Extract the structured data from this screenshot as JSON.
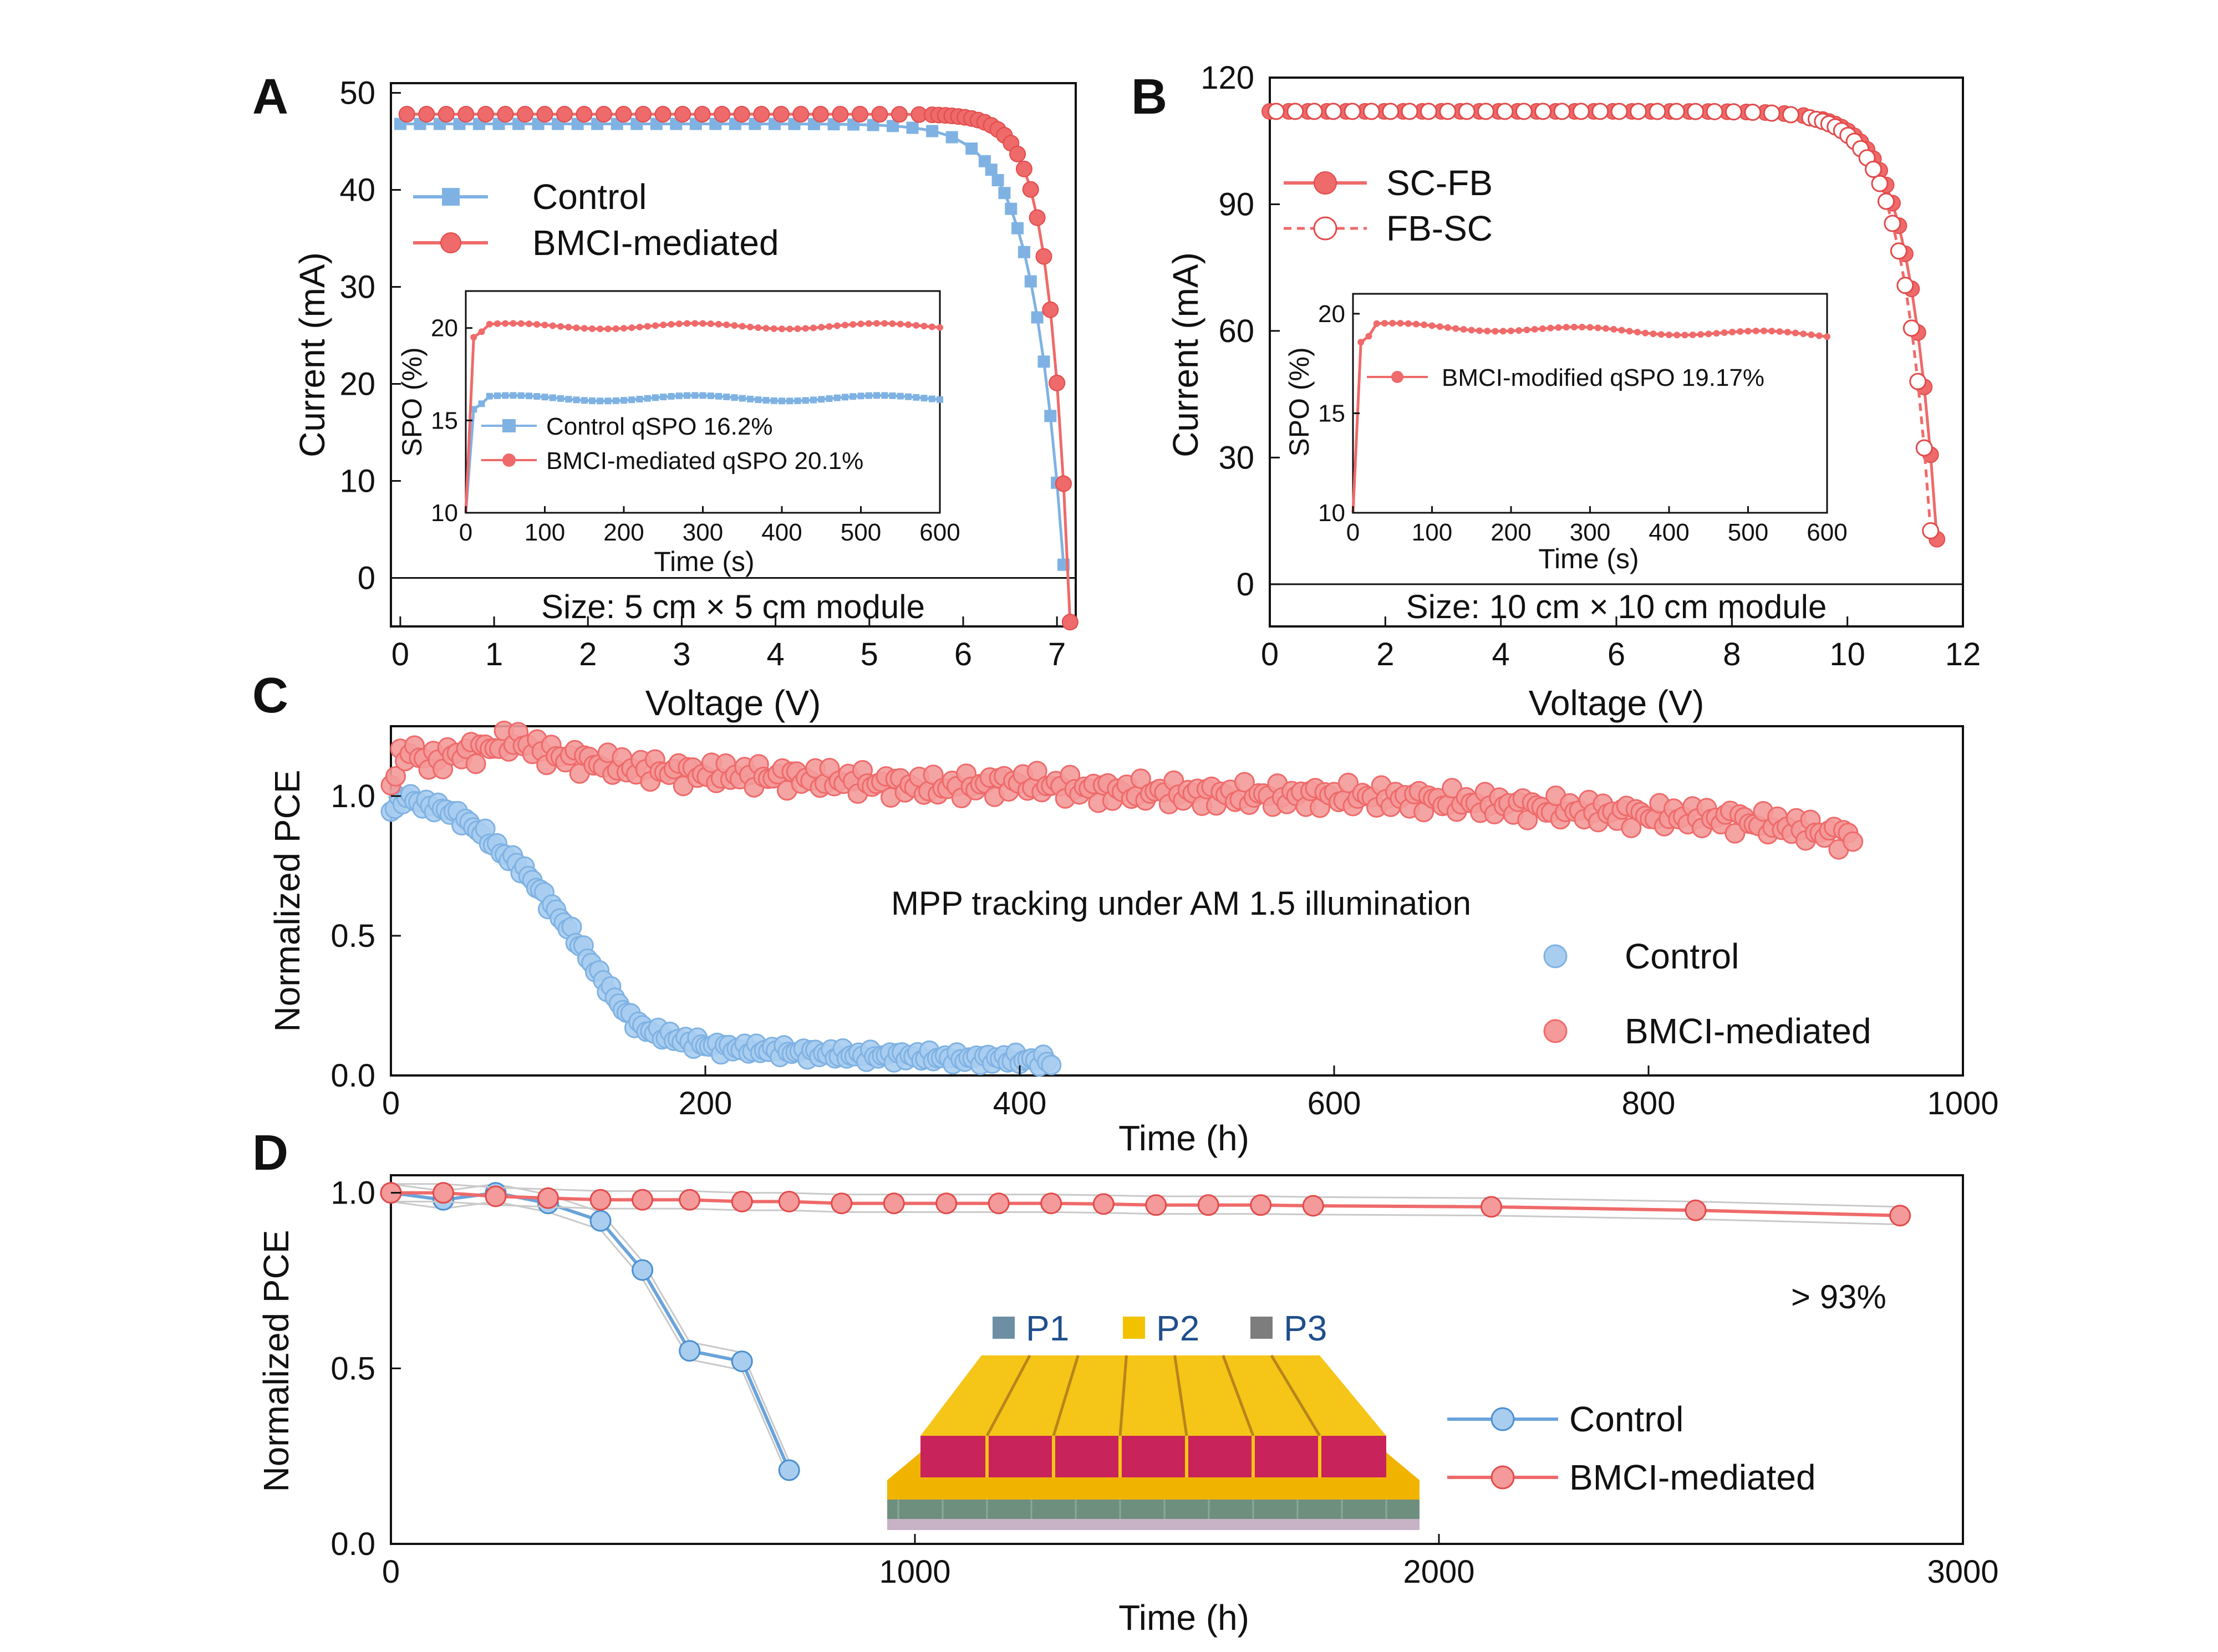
{
  "figure": {
    "colors": {
      "control": "#7fb2e3",
      "control_dark": "#4a90d0",
      "bmci": "#ef6a6a",
      "bmci_dark": "#e24a4a",
      "axis": "#111111"
    },
    "panels": {
      "A": {
        "letter": "A",
        "size_label": "Size: 5 cm × 5 cm module"
      },
      "B": {
        "letter": "B",
        "size_label": "Size: 10 cm × 10 cm module"
      },
      "C": {
        "letter": "C",
        "annotation": "MPP tracking under AM 1.5 illumination"
      },
      "D": {
        "letter": "D",
        "annotation": "> 93%"
      }
    },
    "schematic": {
      "labels": [
        "P1",
        "P2",
        "P3"
      ],
      "colors": [
        "#6e8fa3",
        "#f2c200",
        "#7d7d7d"
      ]
    }
  },
  "chart_data": [
    {
      "id": "A",
      "type": "line",
      "xlabel": "Voltage (V)",
      "ylabel": "Current  (mA)",
      "xlim": [
        -0.1,
        7.2
      ],
      "ylim": [
        -5,
        51
      ],
      "xticks": [
        0,
        1,
        2,
        3,
        4,
        5,
        6,
        7
      ],
      "yticks": [
        0,
        10,
        20,
        30,
        40,
        50
      ],
      "zero_line": true,
      "series": [
        {
          "name": "Control",
          "marker": "square",
          "color_key": "control",
          "model": "jv",
          "params": {
            "jsc": 46.8,
            "voc": 7.08,
            "knee": 6.6,
            "slope": 0.34
          }
        },
        {
          "name": "BMCI-mediated",
          "marker": "circle",
          "color_key": "bmci",
          "model": "jv",
          "params": {
            "jsc": 47.8,
            "voc": 7.12,
            "knee": 6.05,
            "slope": 0.22
          }
        }
      ],
      "legend": [
        "Control",
        "BMCI-mediated"
      ],
      "note": "Size: 5 cm × 5 cm module",
      "inset": {
        "xlabel": "Time (s)",
        "ylabel": "SPO (%)",
        "xlim": [
          0,
          600
        ],
        "ylim": [
          10,
          22
        ],
        "xticks": [
          0,
          100,
          200,
          300,
          400,
          500,
          600
        ],
        "yticks": [
          10,
          15,
          20
        ],
        "series": [
          {
            "name": "Control",
            "label": "Control qSPO 16.2%",
            "value": 16.2,
            "color_key": "control",
            "marker": "square"
          },
          {
            "name": "BMCI-mediated",
            "label": "BMCI-mediated qSPO 20.1%",
            "value": 20.1,
            "color_key": "bmci",
            "marker": "circle"
          }
        ]
      }
    },
    {
      "id": "B",
      "type": "line",
      "xlabel": "Voltage (V)",
      "ylabel": "Current  (mA)",
      "xlim": [
        0,
        12
      ],
      "ylim": [
        -10,
        120
      ],
      "xticks": [
        0,
        2,
        4,
        6,
        8,
        10,
        12
      ],
      "yticks": [
        0,
        30,
        60,
        90,
        120
      ],
      "zero_line": true,
      "series": [
        {
          "name": "SC-FB",
          "marker": "circle",
          "color_key": "bmci",
          "model": "jv",
          "params": {
            "jsc": 112,
            "voc": 11.6,
            "knee": 9.9,
            "slope": 0.5
          }
        },
        {
          "name": "FB-SC",
          "marker": "open-circle",
          "color_key": "bmci",
          "model": "jv",
          "params": {
            "jsc": 112,
            "voc": 11.5,
            "knee": 9.8,
            "slope": 0.5
          }
        }
      ],
      "legend": [
        "SC-FB",
        "FB-SC"
      ],
      "note": "Size: 10 cm × 10 cm module",
      "inset": {
        "xlabel": "Time (s)",
        "ylabel": "SPO (%)",
        "xlim": [
          0,
          600
        ],
        "ylim": [
          10,
          21
        ],
        "xticks": [
          0,
          100,
          200,
          300,
          400,
          500,
          600
        ],
        "yticks": [
          10,
          15,
          20
        ],
        "series": [
          {
            "name": "BMCI-modified",
            "label": "BMCI-modified qSPO 19.17%",
            "value": 19.17,
            "color_key": "bmci",
            "marker": "circle"
          }
        ]
      }
    },
    {
      "id": "C",
      "type": "scatter",
      "xlabel": "Time (h)",
      "ylabel": "Normalized PCE",
      "xlim": [
        0,
        1000
      ],
      "ylim": [
        0,
        1.25
      ],
      "xticks": [
        0,
        200,
        400,
        600,
        800,
        1000
      ],
      "yticks": [
        0.0,
        0.5,
        1.0
      ],
      "annotation": "MPP tracking under AM 1.5 illumination",
      "series": [
        {
          "name": "Control",
          "color_key": "control",
          "points": [
            [
              0,
              0.95
            ],
            [
              10,
              1.0
            ],
            [
              20,
              0.97
            ],
            [
              30,
              0.96
            ],
            [
              40,
              0.94
            ],
            [
              50,
              0.9
            ],
            [
              60,
              0.86
            ],
            [
              70,
              0.8
            ],
            [
              80,
              0.76
            ],
            [
              90,
              0.7
            ],
            [
              100,
              0.62
            ],
            [
              110,
              0.55
            ],
            [
              120,
              0.47
            ],
            [
              130,
              0.38
            ],
            [
              140,
              0.3
            ],
            [
              150,
              0.22
            ],
            [
              160,
              0.17
            ],
            [
              175,
              0.14
            ],
            [
              190,
              0.12
            ],
            [
              210,
              0.1
            ],
            [
              240,
              0.09
            ],
            [
              270,
              0.08
            ],
            [
              300,
              0.07
            ],
            [
              330,
              0.07
            ],
            [
              360,
              0.06
            ],
            [
              390,
              0.06
            ],
            [
              420,
              0.05
            ]
          ]
        },
        {
          "name": "BMCI-mediated",
          "color_key": "bmci",
          "points": [
            [
              0,
              1.05
            ],
            [
              10,
              1.17
            ],
            [
              25,
              1.12
            ],
            [
              40,
              1.15
            ],
            [
              60,
              1.17
            ],
            [
              80,
              1.2
            ],
            [
              100,
              1.15
            ],
            [
              150,
              1.1
            ],
            [
              200,
              1.08
            ],
            [
              250,
              1.07
            ],
            [
              300,
              1.05
            ],
            [
              350,
              1.03
            ],
            [
              400,
              1.05
            ],
            [
              450,
              1.02
            ],
            [
              500,
              1.01
            ],
            [
              550,
              1.0
            ],
            [
              600,
              1.0
            ],
            [
              650,
              0.99
            ],
            [
              700,
              0.97
            ],
            [
              750,
              0.95
            ],
            [
              800,
              0.93
            ],
            [
              850,
              0.92
            ],
            [
              900,
              0.88
            ],
            [
              930,
              0.85
            ]
          ]
        }
      ],
      "legend": [
        "Control",
        "BMCI-mediated"
      ]
    },
    {
      "id": "D",
      "type": "line",
      "xlabel": "Time (h)",
      "ylabel": "Normalized PCE",
      "xlim": [
        0,
        3000
      ],
      "ylim": [
        0,
        1.05
      ],
      "xticks": [
        0,
        1000,
        2000,
        3000
      ],
      "yticks": [
        0.0,
        0.5,
        1.0
      ],
      "annotation": "> 93%",
      "series": [
        {
          "name": "Control",
          "color_key": "control",
          "points": [
            [
              0,
              1.0
            ],
            [
              100,
              0.98
            ],
            [
              200,
              1.0
            ],
            [
              300,
              0.97
            ],
            [
              400,
              0.92
            ],
            [
              480,
              0.78
            ],
            [
              570,
              0.55
            ],
            [
              670,
              0.52
            ],
            [
              760,
              0.21
            ]
          ]
        },
        {
          "name": "BMCI-mediated",
          "color_key": "bmci",
          "points": [
            [
              0,
              1.0
            ],
            [
              100,
              1.0
            ],
            [
              200,
              0.99
            ],
            [
              300,
              0.985
            ],
            [
              400,
              0.98
            ],
            [
              480,
              0.98
            ],
            [
              570,
              0.98
            ],
            [
              670,
              0.975
            ],
            [
              760,
              0.975
            ],
            [
              860,
              0.97
            ],
            [
              960,
              0.97
            ],
            [
              1060,
              0.97
            ],
            [
              1160,
              0.97
            ],
            [
              1260,
              0.97
            ],
            [
              1360,
              0.968
            ],
            [
              1460,
              0.965
            ],
            [
              1560,
              0.965
            ],
            [
              1660,
              0.965
            ],
            [
              1760,
              0.963
            ],
            [
              2100,
              0.96
            ],
            [
              2490,
              0.95
            ],
            [
              2880,
              0.935
            ]
          ]
        }
      ],
      "legend": [
        "Control",
        "BMCI-mediated"
      ]
    }
  ]
}
